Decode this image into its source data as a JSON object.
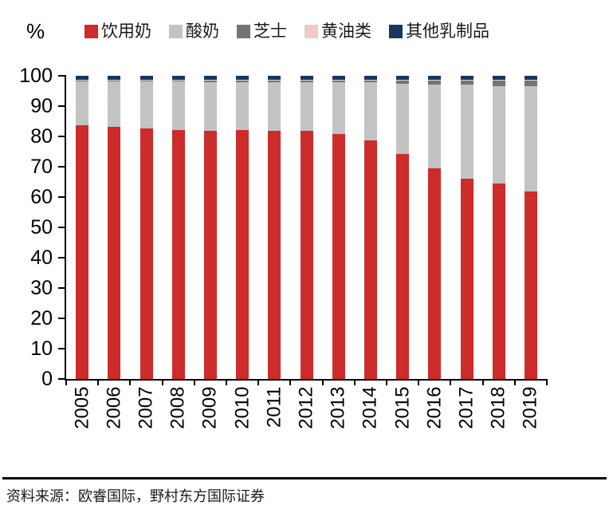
{
  "unit_label": "%",
  "footer": {
    "source": "资料来源：欧睿国际，野村东方国际证券"
  },
  "chart_data": {
    "type": "bar",
    "stacked": true,
    "title": "",
    "xlabel": "",
    "ylabel": "%",
    "ylim": [
      0,
      100
    ],
    "ytick_step": 10,
    "grid": false,
    "legend_position": "top",
    "axis_color": "#000000",
    "categories": [
      "2005",
      "2006",
      "2007",
      "2008",
      "2009",
      "2010",
      "2011",
      "2012",
      "2013",
      "2014",
      "2015",
      "2016",
      "2017",
      "2018",
      "2019"
    ],
    "series": [
      {
        "name": "饮用奶",
        "color": "#CE2B2B",
        "values": [
          83.6,
          83.2,
          82.6,
          82.0,
          81.9,
          82.0,
          81.9,
          81.9,
          80.8,
          78.8,
          74.1,
          69.4,
          66.0,
          64.4,
          61.9
        ]
      },
      {
        "name": "酸奶",
        "color": "#C3C3C3",
        "values": [
          14.5,
          14.9,
          15.5,
          16.1,
          16.1,
          16.0,
          16.0,
          16.0,
          17.1,
          19.0,
          23.2,
          27.8,
          31.0,
          32.3,
          34.7
        ]
      },
      {
        "name": "芝士",
        "color": "#747474",
        "values": [
          0.3,
          0.3,
          0.3,
          0.3,
          0.4,
          0.4,
          0.5,
          0.5,
          0.6,
          0.7,
          1.2,
          1.3,
          1.4,
          1.7,
          1.8
        ]
      },
      {
        "name": "黄油类",
        "color": "#F0C9CD",
        "values": [
          0.3,
          0.3,
          0.3,
          0.3,
          0.3,
          0.3,
          0.3,
          0.3,
          0.2,
          0.2,
          0.2,
          0.2,
          0.3,
          0.3,
          0.3
        ]
      },
      {
        "name": "其他乳制品",
        "color": "#17375E",
        "values": [
          1.3,
          1.3,
          1.3,
          1.3,
          1.3,
          1.3,
          1.3,
          1.3,
          1.3,
          1.3,
          1.3,
          1.3,
          1.3,
          1.3,
          1.3
        ]
      }
    ]
  }
}
